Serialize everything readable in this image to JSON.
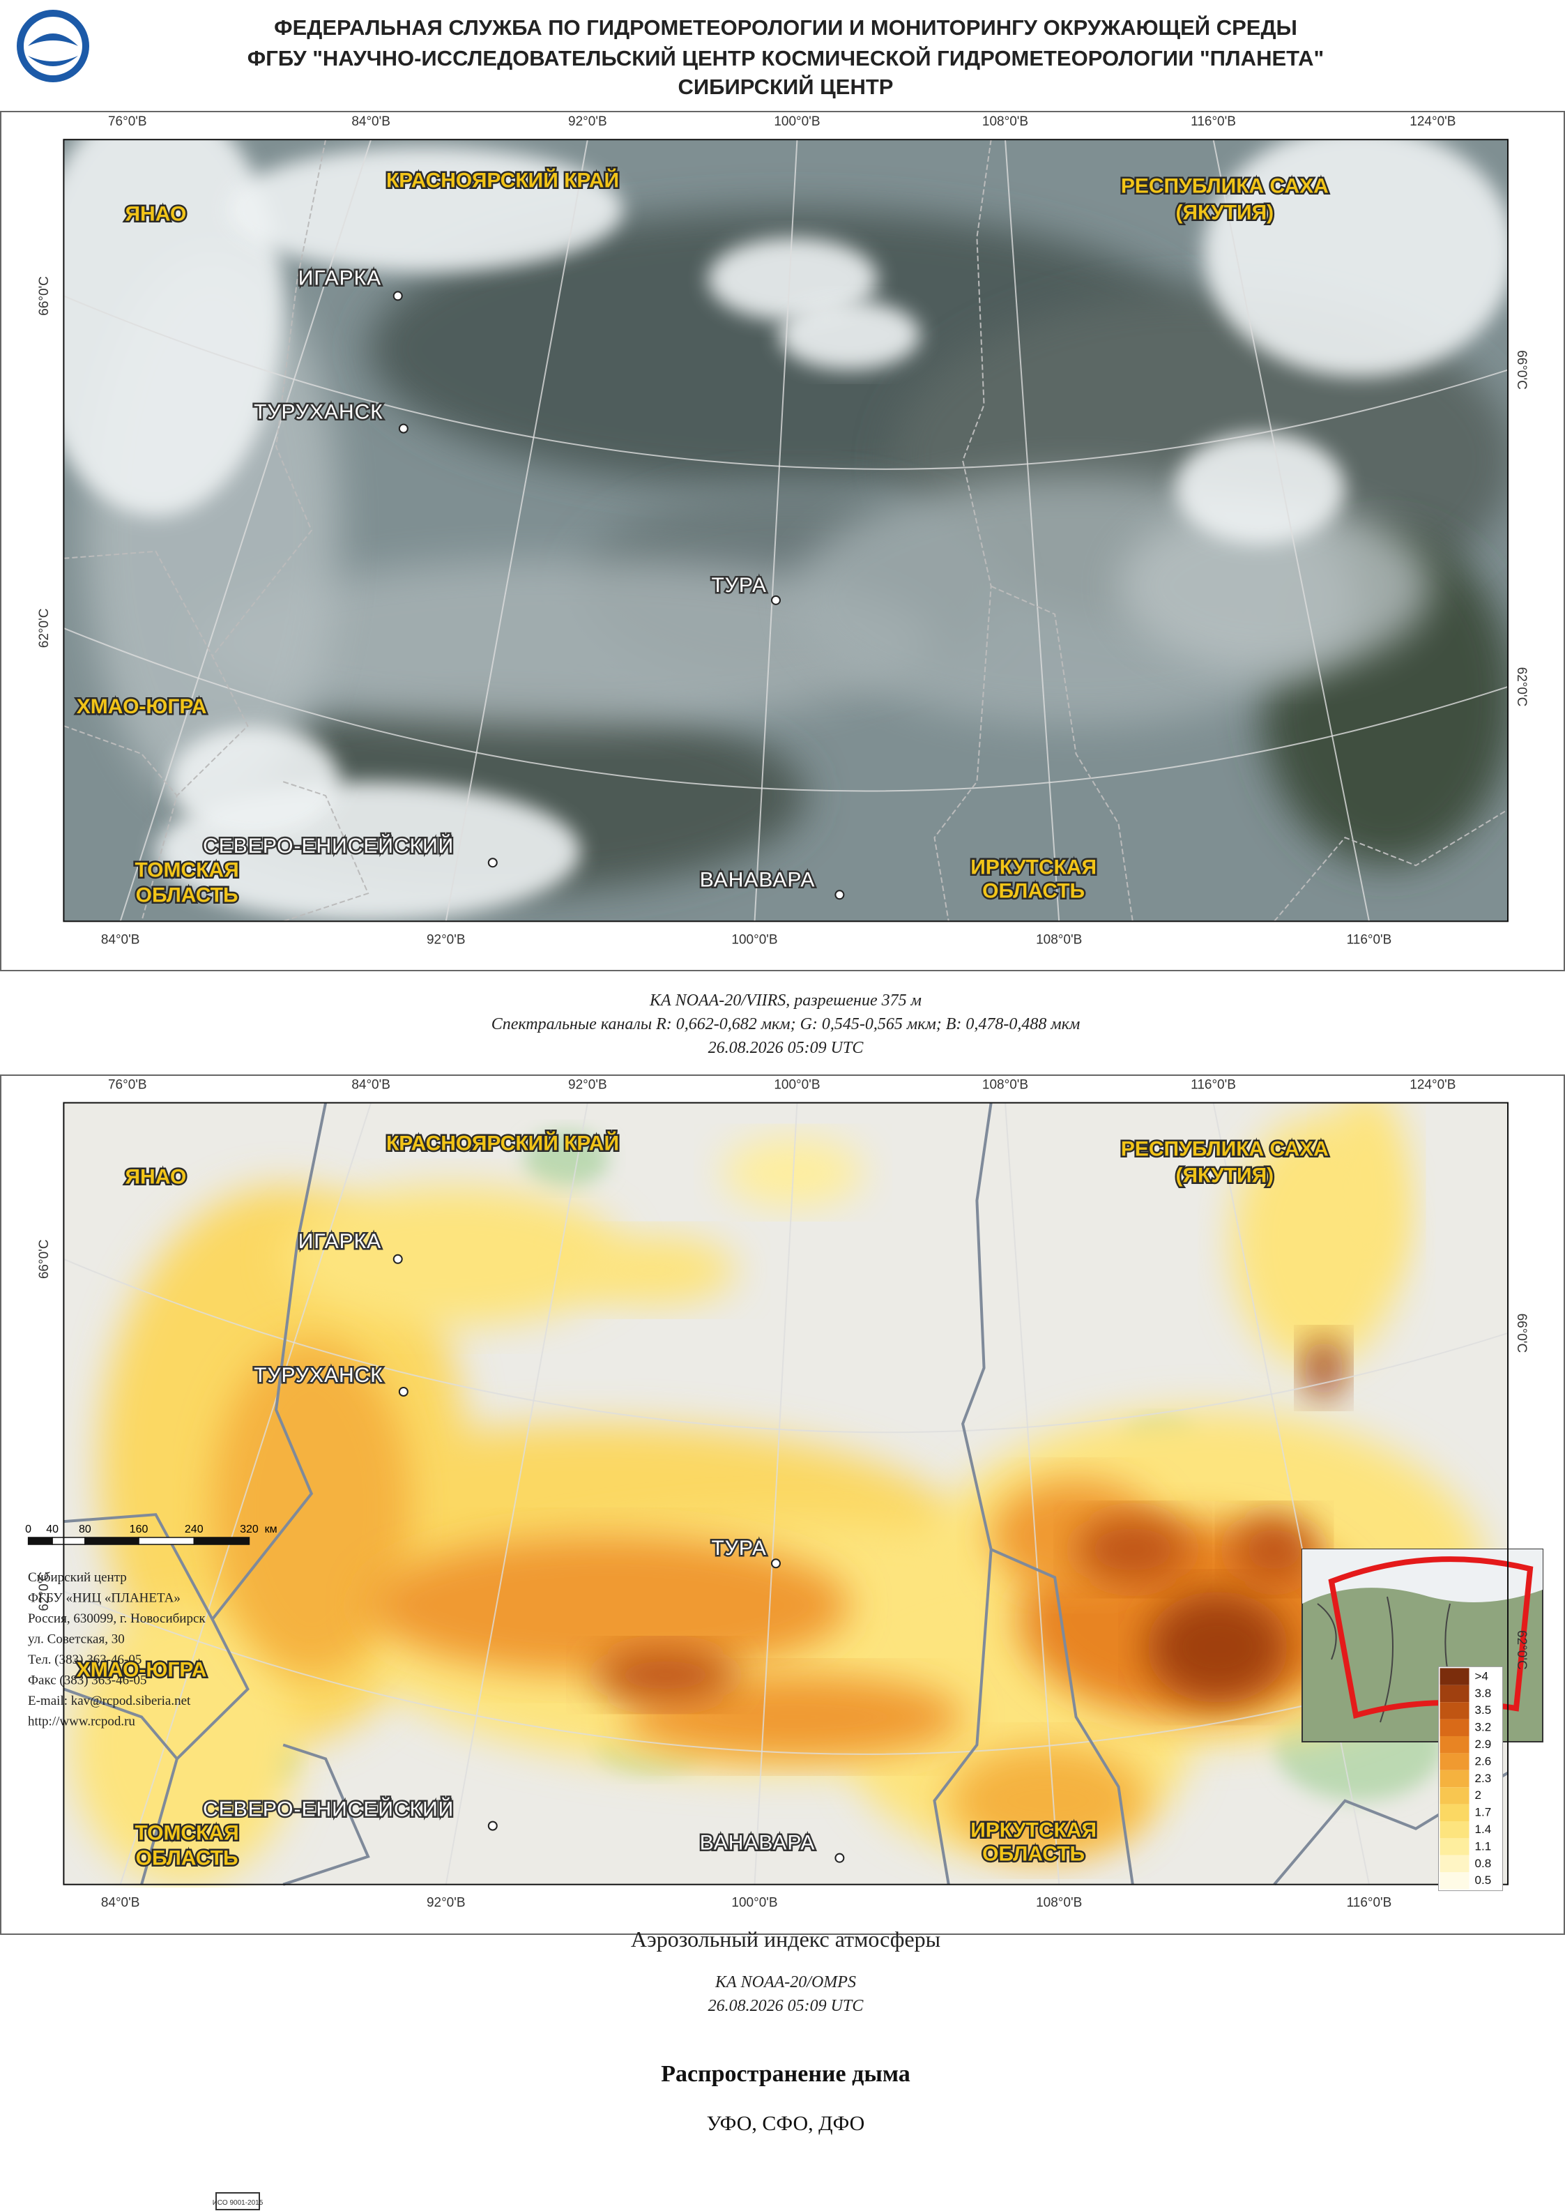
{
  "header": {
    "lines": [
      "ФЕДЕРАЛЬНАЯ СЛУЖБА ПО ГИДРОМЕТЕОРОЛОГИИ И МОНИТОРИНГУ ОКРУЖАЮЩЕЙ СРЕДЫ",
      "ФГБУ \"НАУЧНО-ИССЛЕДОВАТЕЛЬСКИЙ ЦЕНТР КОСМИЧЕСКОЙ ГИДРОМЕТЕОРОЛОГИИ \"ПЛАНЕТА\"",
      "СИБИРСКИЙ ЦЕНТР"
    ]
  },
  "satellite_map": {
    "top_lon": [
      "76°0'В",
      "84°0'В",
      "92°0'В",
      "100°0'В",
      "108°0'В",
      "116°0'В",
      "124°0'В"
    ],
    "bottom_lon": [
      "84°0'В",
      "92°0'В",
      "100°0'В",
      "108°0'В",
      "116°0'В"
    ],
    "left_lat": [
      "66°0'С",
      "62°0'С"
    ],
    "right_lat": [
      "66°0'С",
      "62°0'С"
    ],
    "labels": [
      "ЯНАО",
      "КРАСНОЯРСКИЙ КРАЙ",
      "РЕСПУБЛИКА САХА",
      "(ЯКУТИЯ)",
      "ИГАРКА",
      "ТУРУХАНСК",
      "ТУРА",
      "ХМАО-ЮГРА",
      "СЕВЕРО-ЕНИСЕЙСКИЙ",
      "ТОМСКАЯ",
      "ОБЛАСТЬ",
      "ВАНАВАРА",
      "ИРКУТСКАЯ",
      "ОБЛАСТЬ"
    ]
  },
  "satellite_caption": {
    "lines": [
      "КА NOAA-20/VIIRS, разрешение 375 м",
      "Спектральные каналы R: 0,662-0,682 мкм; G: 0,545-0,565 мкм; B: 0,478-0,488 мкм",
      "26.08.2026  05:09 UTC"
    ]
  },
  "aerosol_map": {
    "top_lon": [
      "76°0'В",
      "84°0'В",
      "92°0'В",
      "100°0'В",
      "108°0'В",
      "116°0'В",
      "124°0'В"
    ],
    "bottom_lon": [
      "84°0'В",
      "92°0'В",
      "100°0'В",
      "108°0'В",
      "116°0'В"
    ],
    "left_lat": [
      "66°0'С",
      "62°0'С"
    ],
    "right_lat": [
      "66°0'С",
      "62°0'С"
    ],
    "labels": [
      "ЯНАО",
      "КРАСНОЯРСКИЙ КРАЙ",
      "РЕСПУБЛИКА САХА",
      "(ЯКУТИЯ)",
      "ИГАРКА",
      "ТУРУХАНСК",
      "ТУРА",
      "ХМАО-ЮГРА",
      "СЕВЕРО-ЕНИСЕЙСКИЙ",
      "ТОМСКАЯ",
      "ОБЛАСТЬ",
      "ВАНАВАРА",
      "ИРКУТСКАЯ",
      "ОБЛАСТЬ"
    ],
    "legend": [
      {
        "label": ">4",
        "color": "#7b2d0c"
      },
      {
        "label": "3.8",
        "color": "#a0400f"
      },
      {
        "label": "3.5",
        "color": "#c05512"
      },
      {
        "label": "3.2",
        "color": "#d96a18"
      },
      {
        "label": "2.9",
        "color": "#e88423"
      },
      {
        "label": "2.6",
        "color": "#f09a30"
      },
      {
        "label": "2.3",
        "color": "#f5b23f"
      },
      {
        "label": "2",
        "color": "#f8c650"
      },
      {
        "label": "1.7",
        "color": "#fbd863"
      },
      {
        "label": "1.4",
        "color": "#fde47e"
      },
      {
        "label": "1.1",
        "color": "#feee9e"
      },
      {
        "label": "0.8",
        "color": "#fff5c4"
      },
      {
        "label": "0.5",
        "color": "#fffbe6"
      }
    ]
  },
  "aerosol_caption": {
    "title": "Аэрозольный индекс атмосферы",
    "lines": [
      "КА NOAA-20/OMPS",
      "26.08.2026  05:09 UTC"
    ]
  },
  "scale_bar": {
    "labels": [
      "0",
      "40",
      "80",
      "160",
      "240",
      "320",
      "км"
    ]
  },
  "contact": {
    "lines": [
      "Сибирский центр",
      "ФГБУ «НИЦ «ПЛАНЕТА»",
      "Россия, 630099, г. Новосибирск",
      "ул. Советская, 30",
      "Тел. (383) 363-46-05",
      "Факс (383) 363-46-05",
      "E-mail: kav@rcpod.siberia.net",
      "http://www.rcpod.ru"
    ],
    "certification": "ИСО 9001-2015"
  },
  "product": {
    "title": "Распространение дыма",
    "regions": "УФО, СФО, ДФО"
  }
}
